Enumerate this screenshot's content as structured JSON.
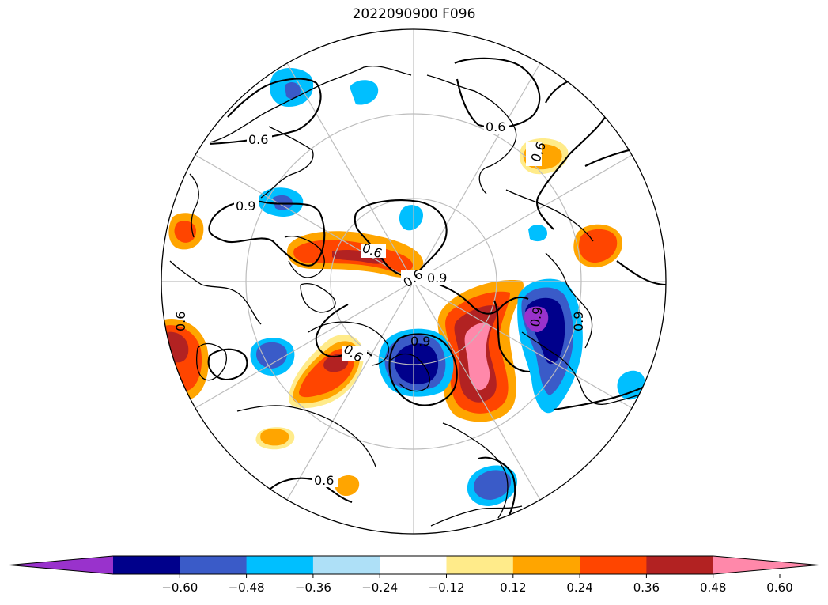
{
  "title": "2022090900 F096",
  "colorbar": {
    "min_color": "#9932CC",
    "max_color": "#FF88AA",
    "bins": [
      {
        "color": "#9932CC"
      },
      {
        "color": "#00008B"
      },
      {
        "color": "#3A5BC8"
      },
      {
        "color": "#00BFFF"
      },
      {
        "color": "#AEE0F7"
      },
      {
        "color": "#FFFFFF"
      },
      {
        "color": "#FFEB8A"
      },
      {
        "color": "#FFA500"
      },
      {
        "color": "#FF4500"
      },
      {
        "color": "#B22222"
      },
      {
        "color": "#FF88AA"
      }
    ],
    "ticks": [
      "−0.60",
      "−0.48",
      "−0.36",
      "−0.24",
      "−0.12",
      "0.12",
      "0.24",
      "0.36",
      "0.48",
      "0.60"
    ]
  },
  "contour_labels": [
    "0.6",
    "0.6",
    "0.6",
    "0.9",
    "0.6",
    "0.6",
    "0.9",
    "0.9",
    "0.6",
    "0.9",
    "0.6",
    "0.9",
    "0.6"
  ],
  "map": {
    "projection": "north-polar-stereographic",
    "grid": true,
    "coastlines": true
  }
}
